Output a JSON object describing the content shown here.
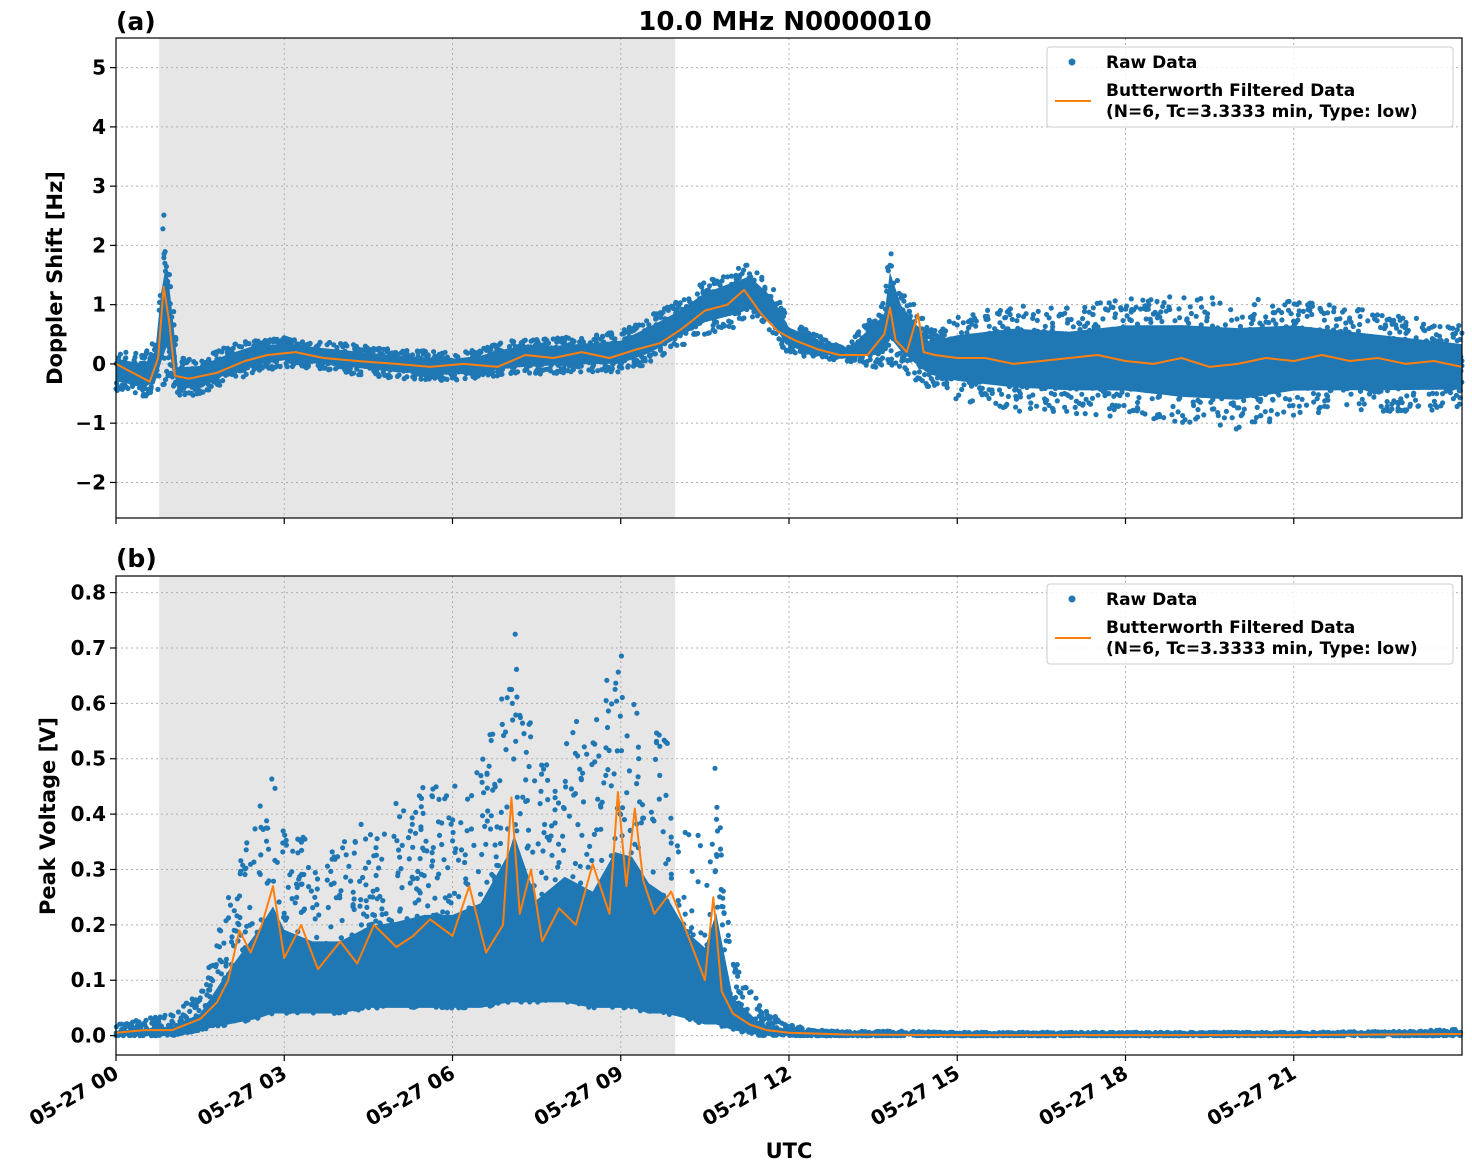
{
  "figure": {
    "title": "10.0 MHz N0000010",
    "xlabel": "UTC",
    "x_range_hours": [
      0,
      24
    ],
    "x_ticks": [
      {
        "hour": 0,
        "label": "05-27 00"
      },
      {
        "hour": 3,
        "label": "05-27 03"
      },
      {
        "hour": 6,
        "label": "05-27 06"
      },
      {
        "hour": 9,
        "label": "05-27 09"
      },
      {
        "hour": 12,
        "label": "05-27 12"
      },
      {
        "hour": 15,
        "label": "05-27 15"
      },
      {
        "hour": 18,
        "label": "05-27 18"
      },
      {
        "hour": 21,
        "label": "05-27 21"
      }
    ],
    "shaded_band_hours": [
      0.77,
      9.97
    ],
    "colors": {
      "raw": "#1f77b4",
      "filtered": "#ff7f0e",
      "shade": "#e6e6e6"
    },
    "legend_position": "upper right"
  },
  "chart_data": [
    {
      "type": "scatter",
      "panel_label": "(a)",
      "ylabel": "Doppler Shift [Hz]",
      "ylim": [
        -2.6,
        5.5
      ],
      "y_ticks": [
        {
          "value": 5,
          "label": "5"
        },
        {
          "value": 4,
          "label": "4"
        },
        {
          "value": 3,
          "label": "3"
        },
        {
          "value": 2,
          "label": "2"
        },
        {
          "value": 1,
          "label": "1"
        },
        {
          "value": 0,
          "label": "0"
        },
        {
          "value": -1,
          "label": "−1"
        },
        {
          "value": -2,
          "label": "−2"
        }
      ],
      "legend": {
        "raw": "Raw Data",
        "filtered_line1": "Butterworth Filtered Data",
        "filtered_line2": "(N=6, Tc=3.3333 min, Type: low)"
      },
      "series": [
        {
          "name": "Raw Data",
          "kind": "scatter_band",
          "x": [
            0,
            0.5,
            0.75,
            0.85,
            0.95,
            1.1,
            1.5,
            2.0,
            2.5,
            3.0,
            4.0,
            5.0,
            6.0,
            6.5,
            7.0,
            8.0,
            9.0,
            9.5,
            10.0,
            10.5,
            11.0,
            11.3,
            11.7,
            12.0,
            12.5,
            13.0,
            13.7,
            13.8,
            14.0,
            14.3,
            14.5,
            15.0,
            15.5,
            16.0,
            17.0,
            18.0,
            19.0,
            20.0,
            21.0,
            22.0,
            23.0,
            24.0
          ],
          "center": [
            -0.1,
            -0.2,
            0.0,
            1.2,
            0.8,
            -0.25,
            -0.2,
            0.0,
            0.15,
            0.2,
            0.1,
            0.0,
            -0.05,
            0.0,
            0.1,
            0.15,
            0.2,
            0.4,
            0.65,
            0.95,
            1.1,
            1.2,
            0.9,
            0.45,
            0.3,
            0.15,
            0.5,
            1.0,
            0.6,
            0.3,
            0.1,
            0.1,
            0.1,
            0.1,
            0.05,
            0.1,
            0.05,
            0.0,
            0.1,
            0.05,
            0.0,
            -0.05
          ],
          "spread": [
            0.35,
            0.35,
            0.5,
            1.6,
            1.0,
            0.35,
            0.3,
            0.3,
            0.3,
            0.25,
            0.25,
            0.25,
            0.25,
            0.25,
            0.3,
            0.3,
            0.35,
            0.4,
            0.4,
            0.45,
            0.5,
            0.5,
            0.4,
            0.3,
            0.2,
            0.1,
            0.6,
            1.0,
            0.7,
            0.6,
            0.5,
            0.7,
            0.8,
            0.9,
            0.9,
            1.0,
            1.1,
            1.1,
            1.0,
            0.9,
            0.8,
            0.7
          ]
        },
        {
          "name": "Butterworth Filtered Data",
          "kind": "line",
          "x": [
            0,
            0.3,
            0.6,
            0.75,
            0.85,
            0.95,
            1.05,
            1.3,
            1.8,
            2.3,
            2.7,
            3.2,
            3.7,
            4.3,
            5.0,
            5.6,
            6.2,
            6.8,
            7.3,
            7.8,
            8.3,
            8.8,
            9.3,
            9.7,
            10.1,
            10.5,
            10.9,
            11.2,
            11.5,
            11.8,
            12.1,
            12.5,
            12.9,
            13.4,
            13.7,
            13.8,
            13.9,
            14.1,
            14.3,
            14.4,
            14.6,
            15.0,
            15.5,
            16.0,
            16.5,
            17.0,
            17.5,
            18.0,
            18.5,
            19.0,
            19.5,
            20.0,
            20.5,
            21.0,
            21.5,
            22.0,
            22.5,
            23.0,
            23.5,
            24.0
          ],
          "y": [
            0.0,
            -0.15,
            -0.3,
            0.1,
            1.3,
            0.7,
            -0.2,
            -0.25,
            -0.15,
            0.05,
            0.15,
            0.2,
            0.1,
            0.05,
            0.0,
            -0.05,
            0.0,
            -0.05,
            0.15,
            0.1,
            0.2,
            0.1,
            0.25,
            0.35,
            0.6,
            0.9,
            1.0,
            1.25,
            0.85,
            0.55,
            0.4,
            0.25,
            0.15,
            0.15,
            0.5,
            0.95,
            0.4,
            0.2,
            0.85,
            0.2,
            0.15,
            0.1,
            0.1,
            0.0,
            0.05,
            0.1,
            0.15,
            0.05,
            0.0,
            0.1,
            -0.05,
            0.0,
            0.1,
            0.05,
            0.15,
            0.05,
            0.1,
            0.0,
            0.05,
            -0.05
          ]
        }
      ]
    },
    {
      "type": "scatter",
      "panel_label": "(b)",
      "ylabel": "Peak Voltage [V]",
      "ylim": [
        -0.035,
        0.83
      ],
      "y_ticks": [
        {
          "value": 0.8,
          "label": "0.8"
        },
        {
          "value": 0.7,
          "label": "0.7"
        },
        {
          "value": 0.6,
          "label": "0.6"
        },
        {
          "value": 0.5,
          "label": "0.5"
        },
        {
          "value": 0.4,
          "label": "0.4"
        },
        {
          "value": 0.3,
          "label": "0.3"
        },
        {
          "value": 0.2,
          "label": "0.2"
        },
        {
          "value": 0.1,
          "label": "0.1"
        },
        {
          "value": 0.0,
          "label": "0.0"
        }
      ],
      "legend": {
        "raw": "Raw Data",
        "filtered_line1": "Butterworth Filtered Data",
        "filtered_line2": "(N=6, Tc=3.3333 min, Type: low)"
      },
      "series": [
        {
          "name": "Raw Data",
          "kind": "scatter_band",
          "x": [
            0,
            0.5,
            1.0,
            1.5,
            2.0,
            2.5,
            2.8,
            3.0,
            3.5,
            4.0,
            4.5,
            5.0,
            5.5,
            6.0,
            6.5,
            7.0,
            7.1,
            7.5,
            8.0,
            8.5,
            8.9,
            9.2,
            9.5,
            9.8,
            10.2,
            10.5,
            10.7,
            11.0,
            11.5,
            12.0,
            12.5,
            13.0,
            14.0,
            15.0,
            18.0,
            21.0,
            23.0,
            24.0
          ],
          "low": [
            0.0,
            0.0,
            0.0,
            0.01,
            0.02,
            0.03,
            0.04,
            0.04,
            0.04,
            0.04,
            0.05,
            0.05,
            0.05,
            0.05,
            0.05,
            0.06,
            0.06,
            0.06,
            0.06,
            0.05,
            0.05,
            0.05,
            0.04,
            0.04,
            0.03,
            0.02,
            0.02,
            0.01,
            0.0,
            0.0,
            0.0,
            0.0,
            0.0,
            0.0,
            0.0,
            0.0,
            0.0,
            0.0
          ],
          "high": [
            0.02,
            0.03,
            0.04,
            0.08,
            0.25,
            0.4,
            0.5,
            0.4,
            0.35,
            0.35,
            0.4,
            0.42,
            0.45,
            0.45,
            0.5,
            0.7,
            0.78,
            0.5,
            0.6,
            0.55,
            0.72,
            0.7,
            0.6,
            0.55,
            0.4,
            0.35,
            0.5,
            0.15,
            0.05,
            0.02,
            0.01,
            0.008,
            0.008,
            0.006,
            0.006,
            0.006,
            0.008,
            0.012
          ]
        },
        {
          "name": "Butterworth Filtered Data",
          "kind": "line",
          "x": [
            0,
            0.5,
            1.0,
            1.5,
            1.8,
            2.0,
            2.2,
            2.4,
            2.6,
            2.8,
            3.0,
            3.3,
            3.6,
            4.0,
            4.3,
            4.6,
            5.0,
            5.3,
            5.6,
            6.0,
            6.3,
            6.6,
            6.9,
            7.05,
            7.2,
            7.4,
            7.6,
            7.9,
            8.2,
            8.5,
            8.8,
            8.95,
            9.1,
            9.25,
            9.4,
            9.6,
            9.9,
            10.2,
            10.5,
            10.65,
            10.8,
            11.0,
            11.3,
            11.6,
            12.0,
            13.0,
            15.0,
            18.0,
            21.0,
            24.0
          ],
          "y": [
            0.005,
            0.01,
            0.01,
            0.03,
            0.06,
            0.1,
            0.19,
            0.15,
            0.2,
            0.27,
            0.14,
            0.2,
            0.12,
            0.17,
            0.13,
            0.2,
            0.16,
            0.18,
            0.21,
            0.18,
            0.27,
            0.15,
            0.2,
            0.43,
            0.22,
            0.3,
            0.17,
            0.23,
            0.2,
            0.31,
            0.22,
            0.44,
            0.27,
            0.41,
            0.28,
            0.22,
            0.26,
            0.18,
            0.1,
            0.25,
            0.08,
            0.04,
            0.02,
            0.01,
            0.005,
            0.002,
            0.001,
            0.001,
            0.001,
            0.003
          ]
        }
      ]
    }
  ]
}
